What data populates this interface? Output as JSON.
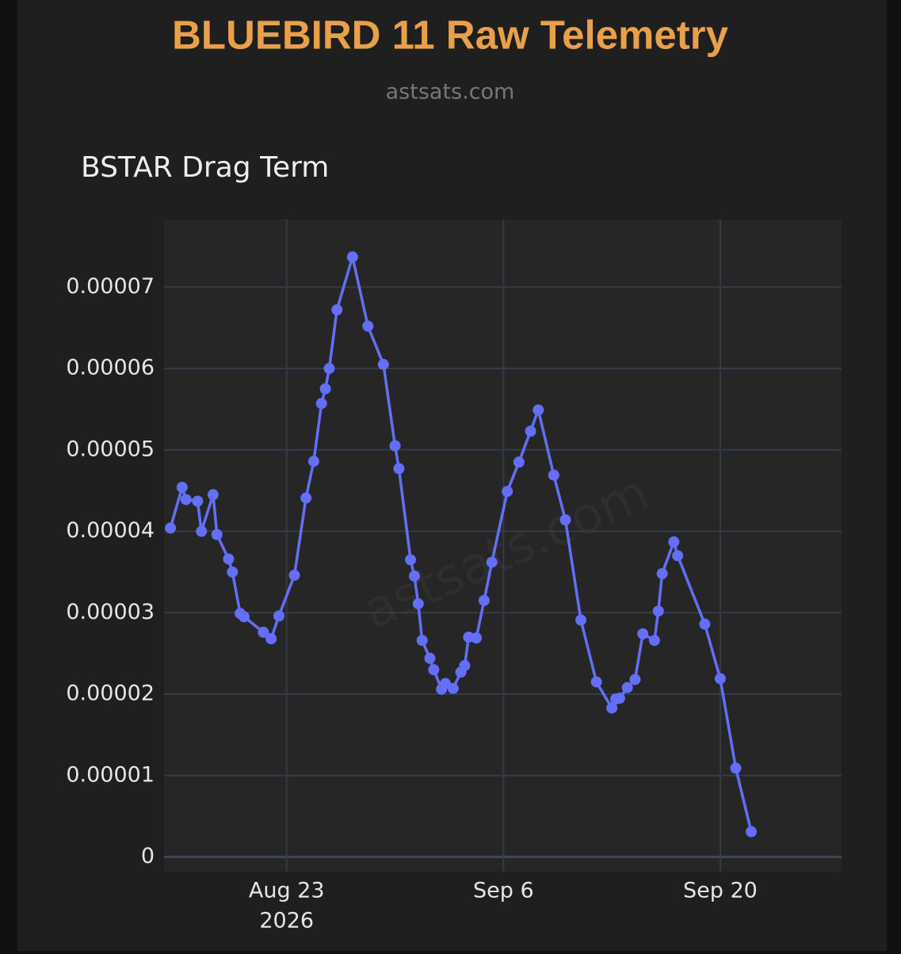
{
  "header": {
    "title": "BLUEBIRD 11 Raw Telemetry",
    "subtitle": "astsats.com"
  },
  "chart_data": {
    "type": "line",
    "title": "BSTAR Drag Term",
    "watermark": "astsats.com",
    "grid": true,
    "x": [
      "2026-08-15T12:00",
      "2026-08-16T06:00",
      "2026-08-16T12:00",
      "2026-08-17T06:00",
      "2026-08-17T12:00",
      "2026-08-18T06:00",
      "2026-08-18T12:00",
      "2026-08-19T06:00",
      "2026-08-19T12:00",
      "2026-08-20T00:00",
      "2026-08-20T06:00",
      "2026-08-21T12:00",
      "2026-08-22T00:00",
      "2026-08-22T12:00",
      "2026-08-23T12:00",
      "2026-08-24T06:00",
      "2026-08-24T18:00",
      "2026-08-25T06:00",
      "2026-08-25T12:00",
      "2026-08-25T18:00",
      "2026-08-26T06:00",
      "2026-08-27T06:00",
      "2026-08-28T06:00",
      "2026-08-29T06:00",
      "2026-08-30T00:00",
      "2026-08-30T06:00",
      "2026-08-31T00:00",
      "2026-08-31T06:00",
      "2026-08-31T12:00",
      "2026-08-31T18:00",
      "2026-09-01T06:00",
      "2026-09-01T12:00",
      "2026-09-02T00:00",
      "2026-09-02T06:00",
      "2026-09-02T18:00",
      "2026-09-03T06:00",
      "2026-09-03T12:00",
      "2026-09-03T18:00",
      "2026-09-04T06:00",
      "2026-09-04T18:00",
      "2026-09-05T06:00",
      "2026-09-06T06:00",
      "2026-09-07T00:00",
      "2026-09-07T18:00",
      "2026-09-08T06:00",
      "2026-09-09T06:00",
      "2026-09-10T00:00",
      "2026-09-11T00:00",
      "2026-09-12T00:00",
      "2026-09-13T00:00",
      "2026-09-13T06:00",
      "2026-09-13T12:00",
      "2026-09-14T00:00",
      "2026-09-14T12:00",
      "2026-09-15T00:00",
      "2026-09-15T18:00",
      "2026-09-16T00:00",
      "2026-09-16T06:00",
      "2026-09-17T00:00",
      "2026-09-17T06:00",
      "2026-09-19T00:00",
      "2026-09-20T00:00",
      "2026-09-21T00:00",
      "2026-09-22T00:00"
    ],
    "series": [
      {
        "color": "#636efa",
        "values": [
          4.04e-05,
          4.54e-05,
          4.39e-05,
          4.37e-05,
          4e-05,
          4.45e-05,
          3.96e-05,
          3.66e-05,
          3.5e-05,
          2.99e-05,
          2.95e-05,
          2.76e-05,
          2.68e-05,
          2.96e-05,
          3.46e-05,
          4.41e-05,
          4.86e-05,
          5.57e-05,
          5.75e-05,
          6e-05,
          6.72e-05,
          7.37e-05,
          6.52e-05,
          6.05e-05,
          5.05e-05,
          4.77e-05,
          3.65e-05,
          3.45e-05,
          3.11e-05,
          2.66e-05,
          2.44e-05,
          2.3e-05,
          2.06e-05,
          2.13e-05,
          2.07e-05,
          2.27e-05,
          2.35e-05,
          2.7e-05,
          2.69e-05,
          3.15e-05,
          3.62e-05,
          4.49e-05,
          4.85e-05,
          5.23e-05,
          5.49e-05,
          4.69e-05,
          4.14e-05,
          2.91e-05,
          2.15e-05,
          1.83e-05,
          1.94e-05,
          1.95e-05,
          2.08e-05,
          2.18e-05,
          2.74e-05,
          2.66e-05,
          3.02e-05,
          3.48e-05,
          3.87e-05,
          3.7e-05,
          2.86e-05,
          2.19e-05,
          1.09e-05,
          3.1e-06
        ]
      }
    ],
    "xlim": [
      "2026-08-15T02:00",
      "2026-09-27T20:00"
    ],
    "xticks": [
      {
        "value": "2026-08-23T00:00",
        "label": [
          "Aug 23",
          "2026"
        ]
      },
      {
        "value": "2026-09-06T00:00",
        "label": [
          "Sep 6"
        ]
      },
      {
        "value": "2026-09-20T00:00",
        "label": [
          "Sep 20"
        ]
      }
    ],
    "ylim": [
      -1.8e-06,
      7.83e-05
    ],
    "yticks": [
      0,
      1e-05,
      2e-05,
      3e-05,
      4e-05,
      5e-05,
      6e-05,
      7e-05
    ]
  }
}
